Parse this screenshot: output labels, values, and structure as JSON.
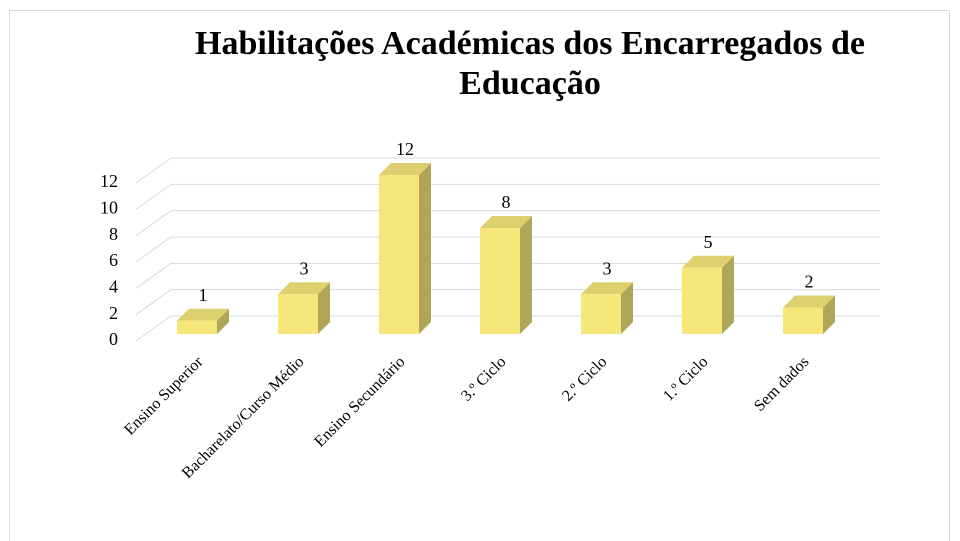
{
  "chart_data": {
    "type": "bar3d",
    "title": "Habilitações Académicas dos Encarregados de Educação",
    "categories": [
      "Ensino Superior",
      "Bacharelato/Curso Médio",
      "Ensino Secundário",
      "3.º Ciclo",
      "2.º Ciclo",
      "1.º Ciclo",
      "Sem dados"
    ],
    "values": [
      1,
      3,
      12,
      8,
      3,
      5,
      2
    ],
    "color": "#f5e77a",
    "ylim": [
      0,
      12
    ],
    "yticks": [
      0,
      2,
      4,
      6,
      8,
      10,
      12
    ],
    "grid": true
  }
}
